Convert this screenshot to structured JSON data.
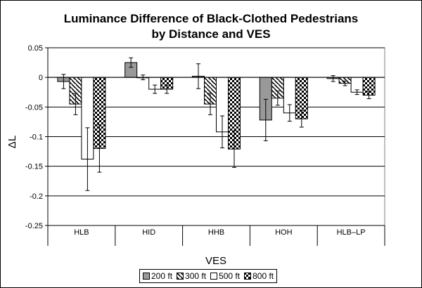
{
  "chart_data": {
    "type": "bar",
    "title": [
      "Luminance Difference of Black-Clothed Pedestrians",
      "by Distance and VES"
    ],
    "xlabel": "VES",
    "ylabel": "ΔL",
    "categories": [
      "HLB",
      "HID",
      "HHB",
      "HOH",
      "HLB–LP"
    ],
    "ylim": [
      -0.25,
      0.05
    ],
    "yticks": [
      0.05,
      0,
      -0.05,
      -0.1,
      -0.15,
      -0.2,
      -0.25
    ],
    "ytick_labels": [
      "0.05",
      "0",
      "-0.05",
      "-0.1",
      "-0.15",
      "-0.2",
      "-0.25"
    ],
    "grid": true,
    "legend_position": "bottom",
    "series": [
      {
        "name": "200 ft",
        "fill": "solid-gray",
        "values": [
          -0.007,
          0.025,
          0.002,
          -0.072,
          -0.002
        ],
        "errors": [
          0.012,
          0.008,
          0.021,
          0.035,
          0.005
        ]
      },
      {
        "name": "300 ft",
        "fill": "diagonal-hatch",
        "values": [
          -0.045,
          0.0,
          -0.045,
          -0.035,
          -0.01
        ],
        "errors": [
          0.018,
          0.004,
          0.018,
          0.012,
          0.004
        ]
      },
      {
        "name": "500 ft",
        "fill": "white",
        "values": [
          -0.138,
          -0.02,
          -0.092,
          -0.06,
          -0.025
        ],
        "errors": [
          0.053,
          0.007,
          0.027,
          0.014,
          0.004
        ]
      },
      {
        "name": "800 ft",
        "fill": "checker",
        "values": [
          -0.12,
          -0.02,
          -0.121,
          -0.07,
          -0.03
        ],
        "errors": [
          0.04,
          0.007,
          0.031,
          0.014,
          0.006
        ]
      }
    ],
    "colors": {
      "plot_bg": "#ffffff",
      "gray_fill": "#999999",
      "grid": "#000000"
    }
  }
}
